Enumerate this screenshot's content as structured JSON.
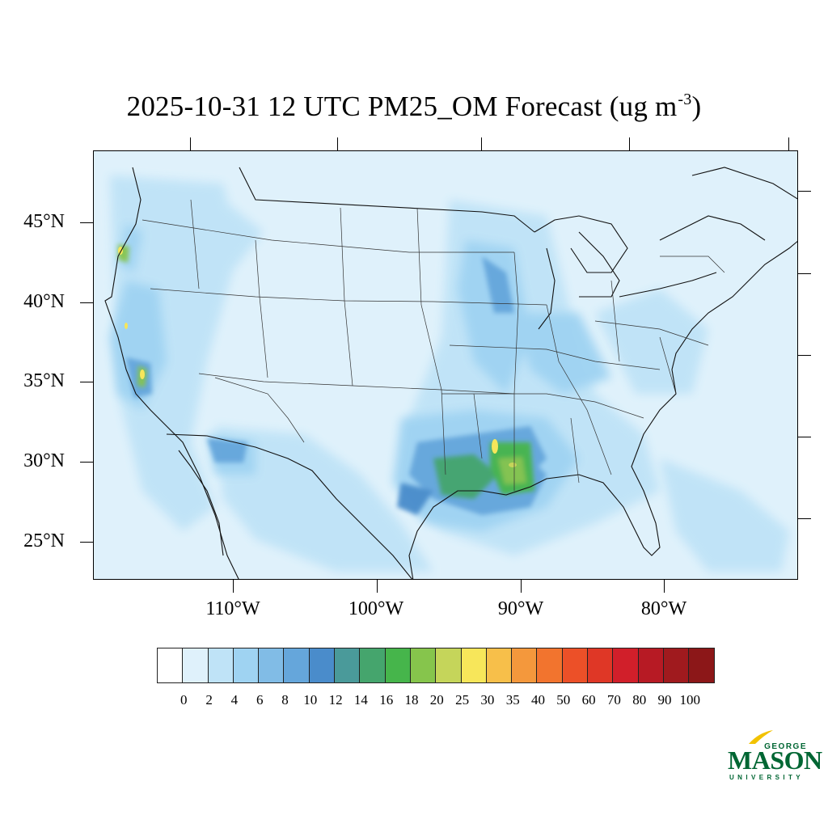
{
  "title": {
    "main": "2025-10-31 12 UTC PM25_OM Forecast (ug m",
    "superscript": "-3",
    "close": ")"
  },
  "lat_labels": [
    "45°N",
    "40°N",
    "35°N",
    "30°N",
    "25°N"
  ],
  "lon_labels": [
    "110°W",
    "100°W",
    "90°W",
    "80°W"
  ],
  "colorbar": {
    "labels": [
      "0",
      "2",
      "4",
      "6",
      "8",
      "10",
      "12",
      "14",
      "16",
      "18",
      "20",
      "25",
      "30",
      "35",
      "40",
      "50",
      "60",
      "70",
      "80",
      "90",
      "100"
    ],
    "colors": [
      "#ffffff",
      "#dff1fb",
      "#bfe3f7",
      "#9fd3f2",
      "#81bce6",
      "#65a6db",
      "#4a8ccb",
      "#4a9a9a",
      "#45a56d",
      "#46b54b",
      "#86c54c",
      "#c5d55a",
      "#f7e65a",
      "#f7bf4a",
      "#f4983c",
      "#f2742e",
      "#ec5028",
      "#df3726",
      "#d11f2a",
      "#b71a24",
      "#a01a1e",
      "#8c1718"
    ]
  },
  "logo": {
    "line1": "GEORGE",
    "line2": "MASON",
    "line3": "UNIVERSITY",
    "brand_color": "#006633",
    "accent_color": "#f2c200"
  }
}
